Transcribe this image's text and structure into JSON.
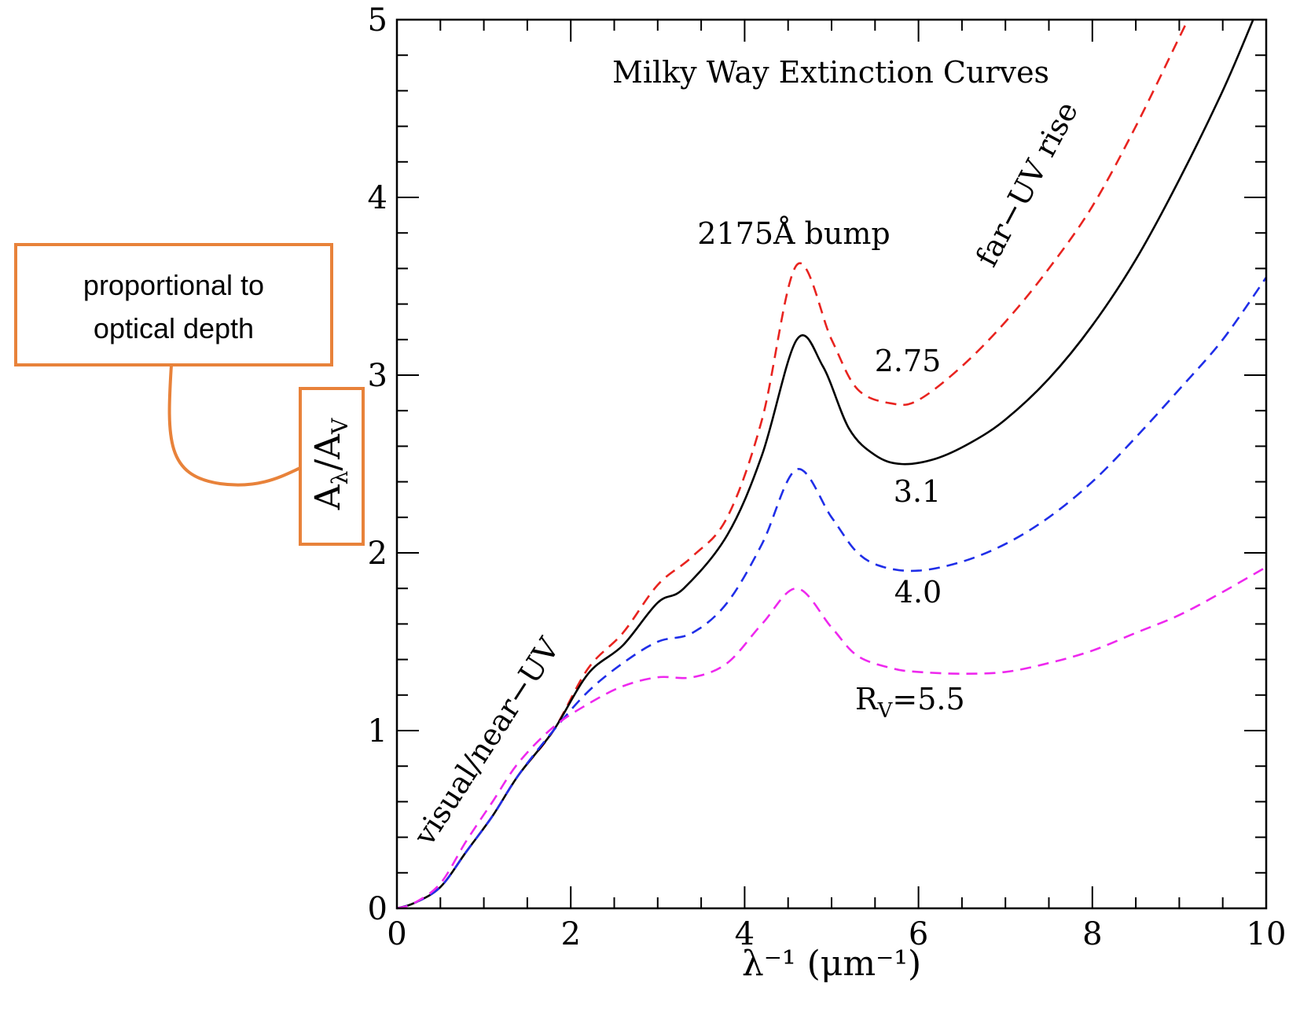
{
  "chart_data": {
    "type": "line",
    "title": "Milky Way Extinction Curves",
    "xlabel": "λ⁻¹ (μm⁻¹)",
    "ylabel": "A_λ/A_V",
    "xlim": [
      0,
      10
    ],
    "ylim": [
      0,
      5
    ],
    "x_ticks": [
      "0",
      "2",
      "4",
      "6",
      "8",
      "10"
    ],
    "y_ticks": [
      "0",
      "1",
      "2",
      "3",
      "4",
      "5"
    ],
    "grid": false,
    "series": [
      {
        "name": "2.75",
        "style": "dashed",
        "color": "#e8231f",
        "points": [
          [
            0,
            0
          ],
          [
            0.2,
            0.03
          ],
          [
            0.5,
            0.12
          ],
          [
            0.8,
            0.32
          ],
          [
            1.1,
            0.52
          ],
          [
            1.4,
            0.75
          ],
          [
            1.8,
            1.0
          ],
          [
            2.2,
            1.35
          ],
          [
            2.6,
            1.55
          ],
          [
            3.0,
            1.82
          ],
          [
            3.4,
            1.98
          ],
          [
            3.8,
            2.2
          ],
          [
            4.2,
            2.75
          ],
          [
            4.6,
            3.62
          ],
          [
            5.0,
            3.2
          ],
          [
            5.3,
            2.92
          ],
          [
            5.7,
            2.84
          ],
          [
            6.0,
            2.86
          ],
          [
            6.5,
            3.05
          ],
          [
            7.0,
            3.3
          ],
          [
            7.5,
            3.6
          ],
          [
            8.0,
            3.95
          ],
          [
            8.5,
            4.4
          ],
          [
            9.0,
            4.9
          ],
          [
            9.1,
            5.0
          ]
        ]
      },
      {
        "name": "3.1",
        "style": "solid",
        "color": "#000000",
        "points": [
          [
            0,
            0
          ],
          [
            0.2,
            0.03
          ],
          [
            0.5,
            0.12
          ],
          [
            0.8,
            0.32
          ],
          [
            1.1,
            0.52
          ],
          [
            1.4,
            0.75
          ],
          [
            1.8,
            1.0
          ],
          [
            2.2,
            1.32
          ],
          [
            2.6,
            1.48
          ],
          [
            3.0,
            1.72
          ],
          [
            3.3,
            1.8
          ],
          [
            3.8,
            2.1
          ],
          [
            4.2,
            2.55
          ],
          [
            4.6,
            3.2
          ],
          [
            4.9,
            3.05
          ],
          [
            5.2,
            2.7
          ],
          [
            5.5,
            2.55
          ],
          [
            5.8,
            2.5
          ],
          [
            6.2,
            2.53
          ],
          [
            6.6,
            2.62
          ],
          [
            7.0,
            2.75
          ],
          [
            7.5,
            2.98
          ],
          [
            8.0,
            3.28
          ],
          [
            8.5,
            3.65
          ],
          [
            9.0,
            4.1
          ],
          [
            9.5,
            4.6
          ],
          [
            9.85,
            5.0
          ]
        ]
      },
      {
        "name": "4.0",
        "style": "dashed",
        "color": "#1f2ee8",
        "points": [
          [
            0,
            0
          ],
          [
            0.2,
            0.03
          ],
          [
            0.5,
            0.12
          ],
          [
            0.8,
            0.32
          ],
          [
            1.1,
            0.52
          ],
          [
            1.4,
            0.75
          ],
          [
            1.8,
            1.0
          ],
          [
            2.2,
            1.22
          ],
          [
            2.6,
            1.38
          ],
          [
            3.0,
            1.5
          ],
          [
            3.4,
            1.55
          ],
          [
            3.8,
            1.72
          ],
          [
            4.2,
            2.05
          ],
          [
            4.6,
            2.47
          ],
          [
            5.0,
            2.2
          ],
          [
            5.3,
            2.0
          ],
          [
            5.6,
            1.92
          ],
          [
            6.0,
            1.9
          ],
          [
            6.5,
            1.95
          ],
          [
            7.0,
            2.05
          ],
          [
            7.5,
            2.2
          ],
          [
            8.0,
            2.4
          ],
          [
            8.5,
            2.65
          ],
          [
            9.0,
            2.92
          ],
          [
            9.5,
            3.2
          ],
          [
            10.0,
            3.55
          ]
        ]
      },
      {
        "name": "R_V=5.5",
        "style": "dashed",
        "color": "#ee28ee",
        "points": [
          [
            0,
            0
          ],
          [
            0.2,
            0.03
          ],
          [
            0.5,
            0.14
          ],
          [
            0.8,
            0.38
          ],
          [
            1.1,
            0.6
          ],
          [
            1.4,
            0.82
          ],
          [
            1.8,
            1.02
          ],
          [
            2.2,
            1.15
          ],
          [
            2.6,
            1.25
          ],
          [
            3.0,
            1.3
          ],
          [
            3.4,
            1.3
          ],
          [
            3.8,
            1.38
          ],
          [
            4.2,
            1.6
          ],
          [
            4.6,
            1.8
          ],
          [
            5.0,
            1.58
          ],
          [
            5.3,
            1.42
          ],
          [
            5.7,
            1.35
          ],
          [
            6.0,
            1.33
          ],
          [
            6.5,
            1.32
          ],
          [
            7.0,
            1.33
          ],
          [
            7.5,
            1.38
          ],
          [
            8.0,
            1.45
          ],
          [
            8.5,
            1.55
          ],
          [
            9.0,
            1.65
          ],
          [
            9.5,
            1.78
          ],
          [
            10.0,
            1.92
          ]
        ]
      }
    ],
    "annotations": {
      "bump": "2175Å bump",
      "far_uv": "far−UV rise",
      "near_uv": "visual/near−UV",
      "label_275": "2.75",
      "label_31": "3.1",
      "label_40": "4.0",
      "label_55": "R_V=5.5"
    }
  },
  "callout": {
    "line1": "proportional to",
    "line2": "optical depth",
    "color": "#e8823a"
  }
}
